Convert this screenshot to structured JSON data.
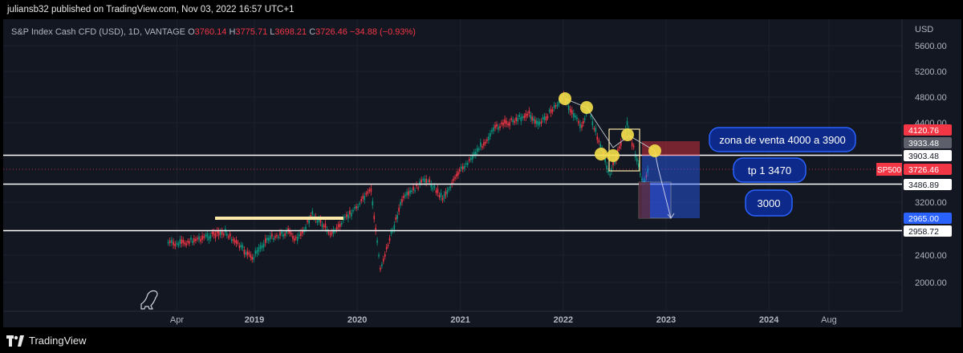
{
  "header": {
    "publisher": "juliansb32 published on TradingView.com, Nov 03, 2022 16:57 UTC+1"
  },
  "legend": {
    "symbol": "S&P Index Cash CFD (USD), 1D, VANTAGE",
    "o_label": "O",
    "o": "3760.14",
    "h_label": "H",
    "h": "3775.71",
    "l_label": "L",
    "l": "3698.21",
    "c_label": "C",
    "c": "3726.46",
    "change": "−34.88 (−0.93%)"
  },
  "axis": {
    "currency": "USD"
  },
  "footer": {
    "brand": "TradingView"
  },
  "chart_data": {
    "type": "candlestick",
    "series": [
      {
        "name": "S&P Index Cash CFD (USD), 1D, VANTAGE"
      }
    ],
    "x": {
      "tick_labels": [
        "Apr",
        "2019",
        "2020",
        "2021",
        "2022",
        "2023",
        "2024",
        "Aug"
      ]
    },
    "y": {
      "tick_labels": [
        "5600.00",
        "5200.00",
        "4800.00",
        "4400.00",
        "3200.00",
        "2400.00",
        "2000.00"
      ],
      "range": [
        1800,
        5800
      ]
    },
    "price_path": [
      [
        "2018-03-01",
        2690
      ],
      [
        "2018-04-01",
        2640
      ],
      [
        "2018-06-01",
        2760
      ],
      [
        "2018-09-20",
        2930
      ],
      [
        "2018-12-24",
        2350
      ],
      [
        "2019-02-15",
        2780
      ],
      [
        "2019-05-01",
        2940
      ],
      [
        "2019-06-03",
        2740
      ],
      [
        "2019-07-26",
        3020
      ],
      [
        "2019-10-03",
        2890
      ],
      [
        "2020-02-19",
        3390
      ],
      [
        "2020-03-23",
        2200
      ],
      [
        "2020-06-08",
        3230
      ],
      [
        "2020-09-02",
        3580
      ],
      [
        "2020-10-30",
        3270
      ],
      [
        "2021-01-04",
        3720
      ],
      [
        "2021-05-10",
        4230
      ],
      [
        "2021-09-02",
        4540
      ],
      [
        "2021-10-04",
        4300
      ],
      [
        "2022-01-03",
        4800
      ],
      [
        "2022-03-08",
        4170
      ],
      [
        "2022-03-29",
        4630
      ],
      [
        "2022-06-16",
        3640
      ],
      [
        "2022-08-16",
        4330
      ],
      [
        "2022-10-13",
        3490
      ],
      [
        "2022-11-02",
        3726
      ]
    ],
    "horizontal_levels": [
      3903.48,
      3486.89,
      2958.72
    ],
    "price_labels": [
      {
        "value": 4120.76,
        "text": "4120.76",
        "color": "#f23645"
      },
      {
        "value": 3933.48,
        "text": "3933.48",
        "color": "#5d606b"
      },
      {
        "value": 3903.48,
        "text": "3903.48",
        "color": "#ffffff"
      },
      {
        "value": 3726.46,
        "text": "3726.46",
        "color": "#f23645"
      },
      {
        "value": 3486.89,
        "text": "3486.89",
        "color": "#ffffff"
      },
      {
        "value": 2965.0,
        "text": "2965.00",
        "color": "#2962ff"
      },
      {
        "value": 2958.72,
        "text": "2958.72",
        "color": "#ffffff"
      }
    ],
    "symbol_tag": "SP500",
    "annotations": [
      "zona de venta 4000 a 3900",
      "tp 1  3470",
      "3000"
    ]
  }
}
